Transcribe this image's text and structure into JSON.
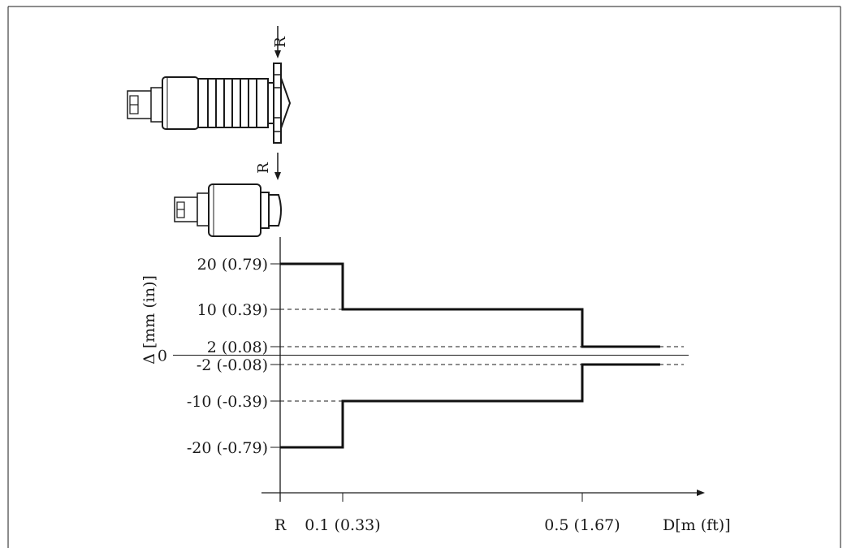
{
  "sensor_labels": {
    "upper": "R",
    "lower": "R"
  },
  "chart_data": {
    "type": "line",
    "ylabel": "Δ [mm (in)]",
    "xlabel": "D[m (ft)]",
    "x_ticks": [
      {
        "value": 0,
        "label": "R"
      },
      {
        "value": 0.1,
        "label": "0.1 (0.33)"
      },
      {
        "value": 0.5,
        "label": "0.5 (1.67)"
      }
    ],
    "y_ticks": [
      {
        "value": 20,
        "label": "20 (0.79)"
      },
      {
        "value": 10,
        "label": "10 (0.39)"
      },
      {
        "value": 2,
        "label": "2 (0.08)"
      },
      {
        "value": 0,
        "label": "0"
      },
      {
        "value": -2,
        "label": "-2 (-0.08)"
      },
      {
        "value": -10,
        "label": "-10 (-0.39)"
      },
      {
        "value": -20,
        "label": "-20 (-0.79)"
      }
    ],
    "series": [
      {
        "x": [
          0,
          0.1,
          0.1,
          0.5,
          0.5,
          0.63
        ],
        "y": [
          20,
          20,
          10,
          10,
          2,
          2
        ]
      },
      {
        "x": [
          0,
          0.1,
          0.1,
          0.5,
          0.5,
          0.63
        ],
        "y": [
          -20,
          -20,
          -10,
          -10,
          -2,
          -2
        ]
      }
    ]
  }
}
